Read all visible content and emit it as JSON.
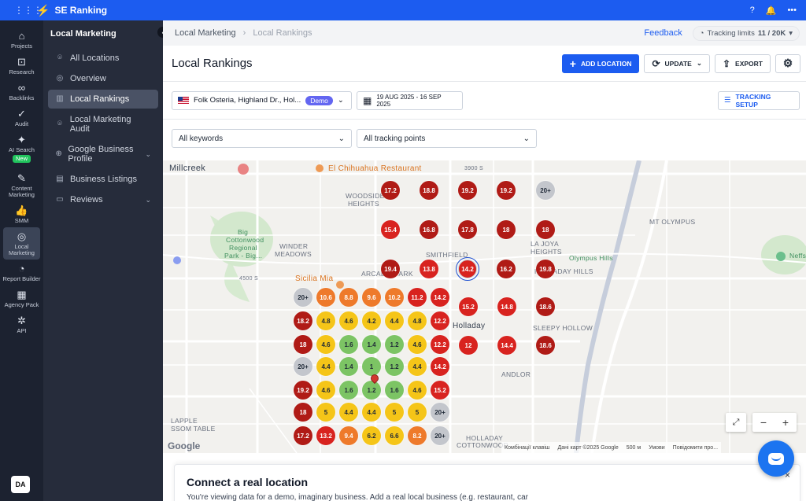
{
  "topbar": {
    "brand": "SE Ranking",
    "apps_icon": "grid-icon",
    "help_icon": "help-icon",
    "bell_icon": "bell-icon",
    "more_icon": "more-icon"
  },
  "rail": {
    "items": [
      {
        "label": "Projects",
        "icon": "home-icon"
      },
      {
        "label": "Research",
        "icon": "research-icon"
      },
      {
        "label": "Backlinks",
        "icon": "link-icon"
      },
      {
        "label": "Audit",
        "icon": "audit-icon"
      },
      {
        "label": "AI Search",
        "icon": "sparkle-icon",
        "badge": "New"
      },
      {
        "label": "Content Marketing",
        "icon": "edit-icon"
      },
      {
        "label": "SMM",
        "icon": "thumb-icon"
      },
      {
        "label": "Local Marketing",
        "icon": "location-icon",
        "active": true
      },
      {
        "label": "Report Builder",
        "icon": "report-icon"
      },
      {
        "label": "Agency Pack",
        "icon": "agency-icon"
      },
      {
        "label": "API",
        "icon": "api-icon"
      }
    ],
    "avatar": "DA"
  },
  "subnav": {
    "title": "Local Marketing",
    "items": [
      {
        "label": "All Locations",
        "icon": "pin-icon"
      },
      {
        "label": "Overview",
        "icon": "compass-icon"
      },
      {
        "label": "Local Rankings",
        "icon": "chart-icon",
        "active": true
      },
      {
        "label": "Local Marketing Audit",
        "icon": "pin-icon"
      },
      {
        "label": "Google Business Profile",
        "icon": "globe-icon",
        "expand": true
      },
      {
        "label": "Business Listings",
        "icon": "list-icon"
      },
      {
        "label": "Reviews",
        "icon": "review-icon",
        "expand": true
      }
    ]
  },
  "crumbs": {
    "parent": "Local Marketing",
    "current": "Local Rankings",
    "feedback": "Feedback",
    "limits_label": "Tracking limits",
    "limits_value": "11 / 20K"
  },
  "page": {
    "title": "Local Rankings"
  },
  "actions": {
    "add": "ADD LOCATION",
    "update": "UPDATE",
    "export": "EXPORT"
  },
  "filters": {
    "location": "Folk Osteria, Highland Dr., Hol...",
    "demo_badge": "Demo",
    "date_range": "19 AUG 2025 - 16 SEP 2025",
    "tracking_setup": "TRACKING SETUP",
    "keywords": "All keywords",
    "tracking_points": "All tracking points"
  },
  "map": {
    "labels": [
      {
        "text": "Millcreek",
        "cls": ""
      },
      {
        "text": "El Chihuahua Restaurant",
        "cls": "orange"
      },
      {
        "text": "WOODSIDE",
        "cls": ""
      },
      {
        "text": "HEIGHTS",
        "cls": ""
      },
      {
        "text": "MT OLYMPUS",
        "cls": ""
      },
      {
        "text": "LA JOYA",
        "cls": ""
      },
      {
        "text": "HEIGHTS",
        "cls": ""
      },
      {
        "text": "Big",
        "cls": "green"
      },
      {
        "text": "Cottonwood",
        "cls": "green"
      },
      {
        "text": "Regional",
        "cls": "green"
      },
      {
        "text": "Park - Big...",
        "cls": "green"
      },
      {
        "text": "WINDER",
        "cls": ""
      },
      {
        "text": "MEADOWS",
        "cls": ""
      },
      {
        "text": "SMITHFIELD",
        "cls": ""
      },
      {
        "text": "Olympus Hills",
        "cls": "green"
      },
      {
        "text": "ARCADIA PARK",
        "cls": ""
      },
      {
        "text": "HOLLADAY HILLS",
        "cls": ""
      },
      {
        "text": "Sicilia Mia",
        "cls": "orange"
      },
      {
        "text": "SLEEPY HOLLOW",
        "cls": ""
      },
      {
        "text": "ANDLOR",
        "cls": ""
      },
      {
        "text": "LAPPLE",
        "cls": ""
      },
      {
        "text": "SSOM TABLE",
        "cls": ""
      },
      {
        "text": "HOLLADAY",
        "cls": ""
      },
      {
        "text": "COTTONWOOD",
        "cls": ""
      },
      {
        "text": "Neffs",
        "cls": "green"
      },
      {
        "text": "4500 S",
        "cls": "small"
      },
      {
        "text": "3900 S",
        "cls": "small"
      },
      {
        "text": "Holladay",
        "cls": ""
      }
    ],
    "attribution": [
      "Комбінації клавіш",
      "Дані карт ©2025 Google",
      "500 м",
      "Умови",
      "Повідомити про..."
    ],
    "google": "Google"
  },
  "grid_points": [
    {
      "value": "17.2",
      "color": "#b01b16"
    },
    {
      "value": "18.8",
      "color": "#b01b16"
    },
    {
      "value": "19.2",
      "color": "#b01b16"
    },
    {
      "value": "19.2",
      "color": "#b01b16"
    },
    {
      "value": "20+",
      "color": "#c3c6cc"
    },
    {
      "value": "15.4",
      "color": "#d8231f"
    },
    {
      "value": "16.8",
      "color": "#b01b16"
    },
    {
      "value": "17.8",
      "color": "#b01b16"
    },
    {
      "value": "18",
      "color": "#b01b16"
    },
    {
      "value": "18",
      "color": "#b01b16"
    },
    {
      "value": "19.4",
      "color": "#b01b16"
    },
    {
      "value": "13.8",
      "color": "#d8231f"
    },
    {
      "value": "14.2",
      "color": "#d8231f"
    },
    {
      "value": "16.2",
      "color": "#b01b16"
    },
    {
      "value": "19.8",
      "color": "#b01b16"
    },
    {
      "value": "20+",
      "color": "#c3c6cc"
    },
    {
      "value": "10.6",
      "color": "#ee7a2b"
    },
    {
      "value": "8.8",
      "color": "#ee7a2b"
    },
    {
      "value": "9.6",
      "color": "#ee7a2b"
    },
    {
      "value": "10.2",
      "color": "#ee7a2b"
    },
    {
      "value": "11.2",
      "color": "#d8231f"
    },
    {
      "value": "14.2",
      "color": "#d8231f"
    },
    {
      "value": "15.2",
      "color": "#d8231f"
    },
    {
      "value": "14.8",
      "color": "#d8231f"
    },
    {
      "value": "18.6",
      "color": "#b01b16"
    },
    {
      "value": "18.2",
      "color": "#b01b16"
    },
    {
      "value": "4.8",
      "color": "#f5c518"
    },
    {
      "value": "4.6",
      "color": "#f5c518"
    },
    {
      "value": "4.2",
      "color": "#f5c518"
    },
    {
      "value": "4.4",
      "color": "#f5c518"
    },
    {
      "value": "4.8",
      "color": "#f5c518"
    },
    {
      "value": "12.2",
      "color": "#d8231f"
    },
    {
      "value": "18",
      "color": "#b01b16"
    },
    {
      "value": "4.6",
      "color": "#f5c518"
    },
    {
      "value": "1.6",
      "color": "#7cc464"
    },
    {
      "value": "1.4",
      "color": "#7cc464"
    },
    {
      "value": "1.2",
      "color": "#7cc464"
    },
    {
      "value": "4.6",
      "color": "#f5c518"
    },
    {
      "value": "12.2",
      "color": "#d8231f"
    },
    {
      "value": "12",
      "color": "#d8231f"
    },
    {
      "value": "14.4",
      "color": "#d8231f"
    },
    {
      "value": "18.6",
      "color": "#b01b16"
    },
    {
      "value": "20+",
      "color": "#c3c6cc"
    },
    {
      "value": "4.4",
      "color": "#f5c518"
    },
    {
      "value": "1.4",
      "color": "#7cc464"
    },
    {
      "value": "1",
      "color": "#7cc464"
    },
    {
      "value": "1.2",
      "color": "#7cc464"
    },
    {
      "value": "4.4",
      "color": "#f5c518"
    },
    {
      "value": "14.2",
      "color": "#d8231f"
    },
    {
      "value": "19.2",
      "color": "#b01b16"
    },
    {
      "value": "4.6",
      "color": "#f5c518"
    },
    {
      "value": "1.6",
      "color": "#7cc464"
    },
    {
      "value": "1.2",
      "color": "#7cc464"
    },
    {
      "value": "1.6",
      "color": "#7cc464"
    },
    {
      "value": "4.6",
      "color": "#f5c518"
    },
    {
      "value": "15.2",
      "color": "#d8231f"
    },
    {
      "value": "18",
      "color": "#b01b16"
    },
    {
      "value": "5",
      "color": "#f5c518"
    },
    {
      "value": "4.4",
      "color": "#f5c518"
    },
    {
      "value": "4.4",
      "color": "#f5c518"
    },
    {
      "value": "5",
      "color": "#f5c518"
    },
    {
      "value": "5",
      "color": "#f5c518"
    },
    {
      "value": "20+",
      "color": "#c3c6cc"
    },
    {
      "value": "17.2",
      "color": "#b01b16"
    },
    {
      "value": "13.2",
      "color": "#d8231f"
    },
    {
      "value": "9.4",
      "color": "#ee7a2b"
    },
    {
      "value": "6.2",
      "color": "#f5c518"
    },
    {
      "value": "6.6",
      "color": "#f5c518"
    },
    {
      "value": "8.2",
      "color": "#ee7a2b"
    },
    {
      "value": "20+",
      "color": "#c3c6cc"
    }
  ],
  "connect": {
    "title": "Connect a real location",
    "text": "You're viewing data for a demo, imaginary business. Add a real local business (e.g. restaurant, car"
  }
}
